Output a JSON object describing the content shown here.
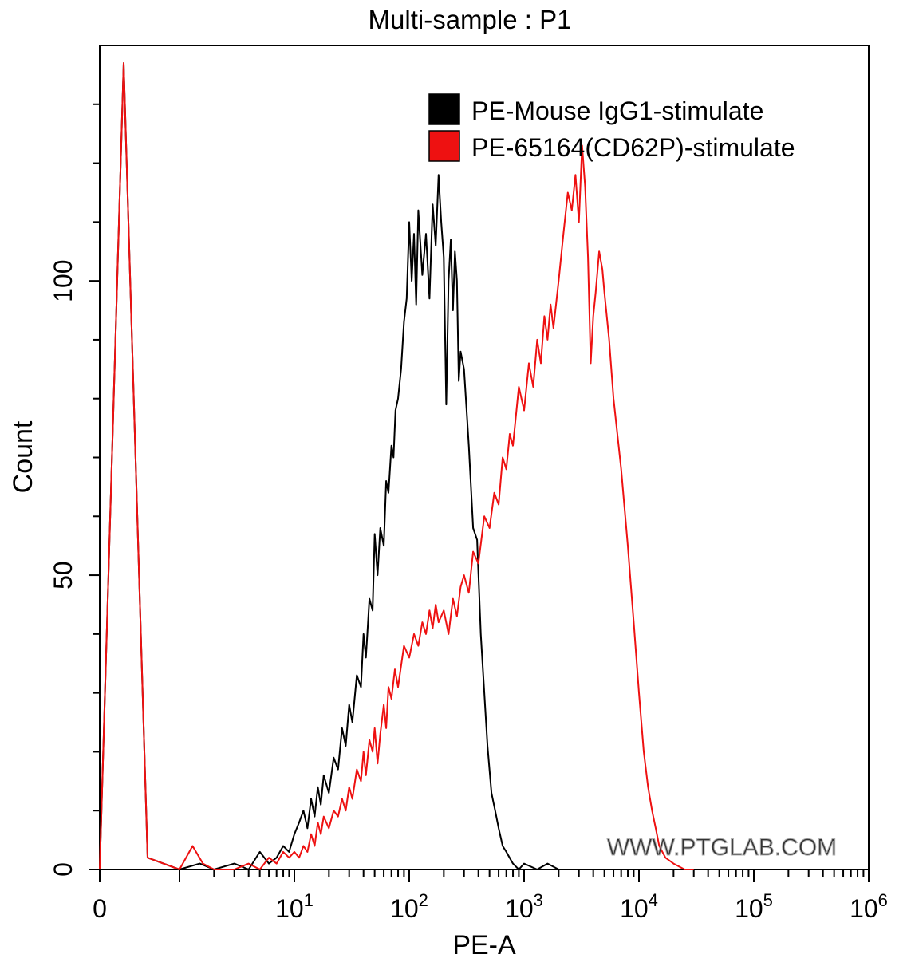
{
  "chart_data": {
    "type": "line",
    "title": "Multi-sample : P1",
    "xlabel": "PE-A",
    "ylabel": "Count",
    "x_scale": "biexponential (linear near 0, log above)",
    "xlim": [
      0,
      1000000
    ],
    "ylim": [
      0,
      140
    ],
    "y_ticks": [
      {
        "value": 0,
        "label": "0"
      },
      {
        "value": 50,
        "label": "50"
      },
      {
        "value": 100,
        "label": "100"
      }
    ],
    "x_ticks": [
      {
        "value": 0,
        "base": "0",
        "exp": ""
      },
      {
        "value": 10,
        "base": "10",
        "exp": "1"
      },
      {
        "value": 100,
        "base": "10",
        "exp": "2"
      },
      {
        "value": 1000,
        "base": "10",
        "exp": "3"
      },
      {
        "value": 10000,
        "base": "10",
        "exp": "4"
      },
      {
        "value": 100000,
        "base": "10",
        "exp": "5"
      },
      {
        "value": 1000000,
        "base": "10",
        "exp": "6"
      }
    ],
    "legend_position": "top-right",
    "watermark": "WWW.PTGLAB.COM",
    "series": [
      {
        "name": "PE-Mouse IgG1-stimulate",
        "color": "#000000",
        "points": [
          [
            0,
            0
          ],
          [
            0.3,
            137
          ],
          [
            0.6,
            2
          ],
          [
            1,
            0
          ],
          [
            1.5,
            1
          ],
          [
            2,
            0
          ],
          [
            3,
            1
          ],
          [
            4,
            0
          ],
          [
            5,
            3
          ],
          [
            6,
            1
          ],
          [
            7,
            2
          ],
          [
            8,
            4
          ],
          [
            9,
            3
          ],
          [
            10,
            6
          ],
          [
            11,
            8
          ],
          [
            12,
            10
          ],
          [
            13,
            7
          ],
          [
            14,
            12
          ],
          [
            15,
            9
          ],
          [
            16,
            14
          ],
          [
            17,
            11
          ],
          [
            18,
            16
          ],
          [
            20,
            13
          ],
          [
            22,
            19
          ],
          [
            24,
            17
          ],
          [
            26,
            24
          ],
          [
            28,
            21
          ],
          [
            30,
            28
          ],
          [
            32,
            25
          ],
          [
            35,
            33
          ],
          [
            38,
            31
          ],
          [
            40,
            40
          ],
          [
            42,
            36
          ],
          [
            45,
            46
          ],
          [
            48,
            44
          ],
          [
            50,
            57
          ],
          [
            53,
            50
          ],
          [
            56,
            58
          ],
          [
            60,
            55
          ],
          [
            63,
            66
          ],
          [
            66,
            64
          ],
          [
            70,
            72
          ],
          [
            73,
            70
          ],
          [
            76,
            78
          ],
          [
            80,
            80
          ],
          [
            85,
            85
          ],
          [
            90,
            93
          ],
          [
            95,
            97
          ],
          [
            100,
            110
          ],
          [
            105,
            100
          ],
          [
            110,
            108
          ],
          [
            115,
            96
          ],
          [
            120,
            112
          ],
          [
            130,
            101
          ],
          [
            140,
            108
          ],
          [
            150,
            97
          ],
          [
            160,
            113
          ],
          [
            170,
            106
          ],
          [
            180,
            118
          ],
          [
            190,
            110
          ],
          [
            200,
            104
          ],
          [
            210,
            79
          ],
          [
            220,
            100
          ],
          [
            230,
            107
          ],
          [
            240,
            95
          ],
          [
            250,
            105
          ],
          [
            260,
            100
          ],
          [
            270,
            83
          ],
          [
            280,
            88
          ],
          [
            300,
            85
          ],
          [
            330,
            72
          ],
          [
            360,
            58
          ],
          [
            390,
            56
          ],
          [
            420,
            40
          ],
          [
            450,
            30
          ],
          [
            480,
            21
          ],
          [
            520,
            13
          ],
          [
            560,
            10
          ],
          [
            600,
            7
          ],
          [
            650,
            4
          ],
          [
            700,
            3
          ],
          [
            800,
            1
          ],
          [
            900,
            0
          ],
          [
            1000,
            1
          ],
          [
            1300,
            0
          ],
          [
            1600,
            1
          ],
          [
            2000,
            0
          ],
          [
            3000,
            0
          ]
        ]
      },
      {
        "name": "PE-65164(CD62P)-stimulate",
        "color": "#ee1111",
        "points": [
          [
            0,
            0
          ],
          [
            0.3,
            137
          ],
          [
            0.6,
            2
          ],
          [
            1,
            0
          ],
          [
            1.3,
            4
          ],
          [
            1.6,
            1
          ],
          [
            2,
            0
          ],
          [
            3,
            0
          ],
          [
            4,
            1
          ],
          [
            5,
            0
          ],
          [
            6,
            2
          ],
          [
            7,
            1
          ],
          [
            8,
            3
          ],
          [
            9,
            2
          ],
          [
            10,
            3
          ],
          [
            11,
            2
          ],
          [
            12,
            4
          ],
          [
            13,
            3
          ],
          [
            14,
            6
          ],
          [
            15,
            4
          ],
          [
            16,
            8
          ],
          [
            17,
            6
          ],
          [
            18,
            9
          ],
          [
            20,
            7
          ],
          [
            22,
            10
          ],
          [
            24,
            9
          ],
          [
            26,
            12
          ],
          [
            28,
            10
          ],
          [
            30,
            14
          ],
          [
            32,
            12
          ],
          [
            35,
            17
          ],
          [
            38,
            15
          ],
          [
            40,
            20
          ],
          [
            42,
            16
          ],
          [
            45,
            22
          ],
          [
            48,
            20
          ],
          [
            50,
            24
          ],
          [
            53,
            18
          ],
          [
            56,
            23
          ],
          [
            60,
            28
          ],
          [
            63,
            24
          ],
          [
            66,
            31
          ],
          [
            70,
            29
          ],
          [
            75,
            34
          ],
          [
            80,
            31
          ],
          [
            90,
            38
          ],
          [
            100,
            36
          ],
          [
            110,
            40
          ],
          [
            120,
            38
          ],
          [
            130,
            42
          ],
          [
            140,
            40
          ],
          [
            150,
            44
          ],
          [
            160,
            41
          ],
          [
            170,
            45
          ],
          [
            180,
            42
          ],
          [
            200,
            44
          ],
          [
            220,
            40
          ],
          [
            240,
            46
          ],
          [
            260,
            43
          ],
          [
            280,
            48
          ],
          [
            300,
            50
          ],
          [
            330,
            47
          ],
          [
            360,
            54
          ],
          [
            400,
            52
          ],
          [
            450,
            60
          ],
          [
            500,
            58
          ],
          [
            550,
            64
          ],
          [
            600,
            62
          ],
          [
            650,
            70
          ],
          [
            700,
            68
          ],
          [
            750,
            74
          ],
          [
            800,
            72
          ],
          [
            900,
            82
          ],
          [
            1000,
            78
          ],
          [
            1100,
            86
          ],
          [
            1200,
            82
          ],
          [
            1300,
            90
          ],
          [
            1400,
            86
          ],
          [
            1500,
            94
          ],
          [
            1600,
            90
          ],
          [
            1700,
            96
          ],
          [
            1800,
            92
          ],
          [
            2000,
            100
          ],
          [
            2200,
            108
          ],
          [
            2400,
            115
          ],
          [
            2600,
            112
          ],
          [
            2800,
            118
          ],
          [
            3000,
            110
          ],
          [
            3200,
            123
          ],
          [
            3400,
            116
          ],
          [
            3600,
            104
          ],
          [
            3800,
            86
          ],
          [
            4000,
            94
          ],
          [
            4200,
            98
          ],
          [
            4500,
            105
          ],
          [
            4800,
            102
          ],
          [
            5000,
            98
          ],
          [
            5500,
            90
          ],
          [
            6000,
            80
          ],
          [
            7000,
            68
          ],
          [
            8000,
            55
          ],
          [
            9000,
            42
          ],
          [
            10000,
            30
          ],
          [
            11000,
            20
          ],
          [
            12000,
            14
          ],
          [
            13000,
            10
          ],
          [
            14000,
            7
          ],
          [
            15000,
            4
          ],
          [
            17000,
            2
          ],
          [
            20000,
            1
          ],
          [
            25000,
            0
          ],
          [
            30000,
            0
          ]
        ]
      }
    ]
  }
}
